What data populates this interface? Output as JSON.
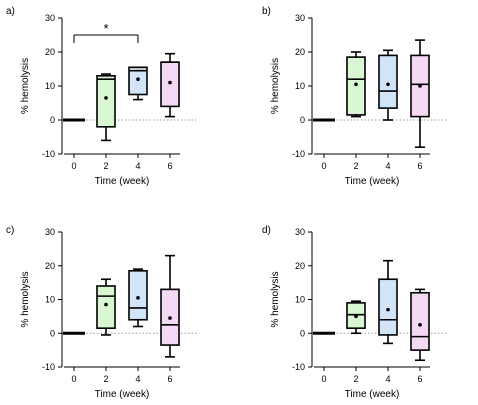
{
  "colors": {
    "week0": "#000000",
    "week2": "#d9f7d3",
    "week4": "#d2e4f8",
    "week6": "#f3d9f3",
    "zero_line": "#9a9a9a"
  },
  "chart_data": [
    {
      "panel_label": "a)",
      "type": "box",
      "categories": [
        "0",
        "2",
        "4",
        "6"
      ],
      "xlabel": "Time (week)",
      "ylabel": "% hemolysis",
      "ylim": [
        -10,
        30
      ],
      "yticks": [
        -10,
        0,
        10,
        20,
        30
      ],
      "zero_reference_line": true,
      "boxes": [
        {
          "x": "0",
          "min": 0,
          "q1": 0,
          "median": 0,
          "q3": 0,
          "max": 0,
          "mean": 0
        },
        {
          "x": "2",
          "min": -6,
          "q1": -2,
          "median": 12,
          "q3": 13,
          "max": 13.5,
          "mean": 6.5
        },
        {
          "x": "4",
          "min": 6,
          "q1": 7.5,
          "median": 14.5,
          "q3": 15.5,
          "max": 15.5,
          "mean": 12
        },
        {
          "x": "6",
          "min": 1,
          "q1": 4,
          "median": 17,
          "q3": 17,
          "max": 19.5,
          "mean": 11
        }
      ],
      "annotations": [
        {
          "text": "*",
          "from": "0",
          "to": "4",
          "y": 25
        }
      ]
    },
    {
      "panel_label": "b)",
      "type": "box",
      "categories": [
        "0",
        "2",
        "4",
        "6"
      ],
      "xlabel": "Time (week)",
      "ylabel": "% hemolysis",
      "ylim": [
        -10,
        30
      ],
      "yticks": [
        -10,
        0,
        10,
        20,
        30
      ],
      "zero_reference_line": true,
      "boxes": [
        {
          "x": "0",
          "min": 0,
          "q1": 0,
          "median": 0,
          "q3": 0,
          "max": 0,
          "mean": 0
        },
        {
          "x": "2",
          "min": 1,
          "q1": 1.5,
          "median": 12,
          "q3": 18.5,
          "max": 20,
          "mean": 10.5
        },
        {
          "x": "4",
          "min": 0,
          "q1": 3.5,
          "median": 8.5,
          "q3": 19,
          "max": 20.5,
          "mean": 10.5
        },
        {
          "x": "6",
          "min": -8,
          "q1": 1,
          "median": 10.5,
          "q3": 19,
          "max": 23.5,
          "mean": 10
        }
      ],
      "annotations": []
    },
    {
      "panel_label": "c)",
      "type": "box",
      "categories": [
        "0",
        "2",
        "4",
        "6"
      ],
      "xlabel": "Time (week)",
      "ylabel": "% hemolysis",
      "ylim": [
        -10,
        30
      ],
      "yticks": [
        -10,
        0,
        10,
        20,
        30
      ],
      "zero_reference_line": true,
      "boxes": [
        {
          "x": "0",
          "min": 0,
          "q1": 0,
          "median": 0,
          "q3": 0,
          "max": 0,
          "mean": 0
        },
        {
          "x": "2",
          "min": -0.5,
          "q1": 1.5,
          "median": 11,
          "q3": 14,
          "max": 16,
          "mean": 8.5
        },
        {
          "x": "4",
          "min": 2,
          "q1": 4,
          "median": 7.5,
          "q3": 18.5,
          "max": 19,
          "mean": 10.5
        },
        {
          "x": "6",
          "min": -7,
          "q1": -3.5,
          "median": 2.5,
          "q3": 13,
          "max": 23,
          "mean": 4.5
        }
      ],
      "annotations": []
    },
    {
      "panel_label": "d)",
      "type": "box",
      "categories": [
        "0",
        "2",
        "4",
        "6"
      ],
      "xlabel": "Time (week)",
      "ylabel": "% hemolysis",
      "ylim": [
        -10,
        30
      ],
      "yticks": [
        -10,
        0,
        10,
        20,
        30
      ],
      "zero_reference_line": true,
      "boxes": [
        {
          "x": "0",
          "min": 0,
          "q1": 0,
          "median": 0,
          "q3": 0,
          "max": 0,
          "mean": 0
        },
        {
          "x": "2",
          "min": 0,
          "q1": 1.5,
          "median": 5.5,
          "q3": 9,
          "max": 9.5,
          "mean": 5
        },
        {
          "x": "4",
          "min": -3,
          "q1": -0.5,
          "median": 4,
          "q3": 16,
          "max": 21.5,
          "mean": 7
        },
        {
          "x": "6",
          "min": -8,
          "q1": -5,
          "median": -1,
          "q3": 12,
          "max": 13,
          "mean": 2.5
        }
      ],
      "annotations": []
    }
  ]
}
